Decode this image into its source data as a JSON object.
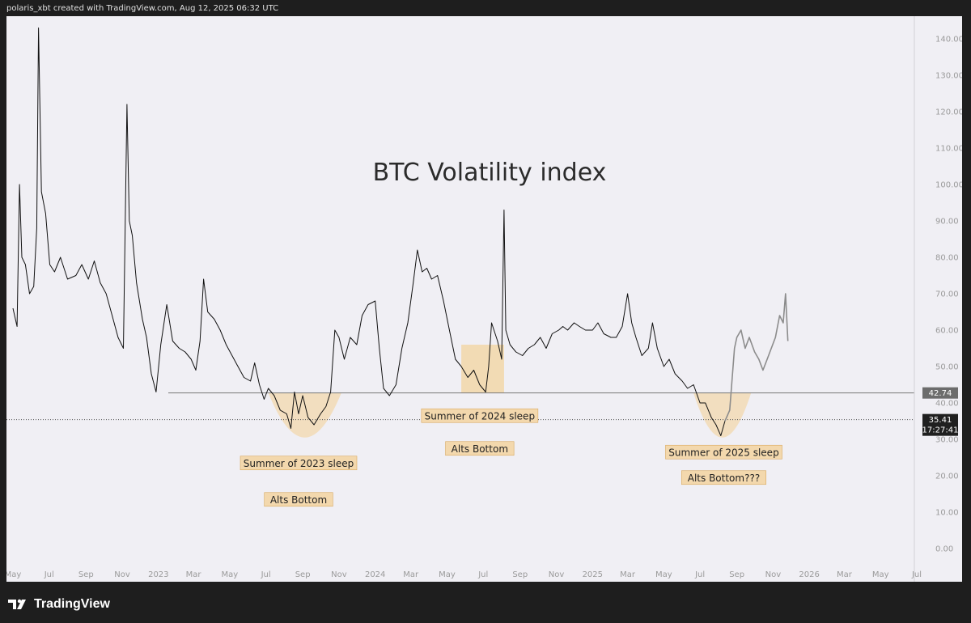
{
  "header": {
    "attribution": "polaris_xbt created with TradingView.com, Aug 12, 2025 06:32 UTC"
  },
  "footer": {
    "brand": "TradingView"
  },
  "colors": {
    "background": "#f0eff4",
    "series": "#111111",
    "projection": "#8c8c8c",
    "highlight": "#f2d7a8"
  },
  "chart_data": {
    "type": "line",
    "title": "BTC Volatility index",
    "ylim": [
      -1,
      145
    ],
    "yticks": [
      "140.00",
      "130.00",
      "120.00",
      "110.00",
      "100.00",
      "90.00",
      "80.00",
      "70.00",
      "60.00",
      "50.00",
      "40.00",
      "30.00",
      "20.00",
      "10.00",
      "0.00"
    ],
    "x_tick_labels": [
      "May",
      "Jul",
      "Sep",
      "Nov",
      "2023",
      "Mar",
      "May",
      "Jul",
      "Sep",
      "Nov",
      "2024",
      "Mar",
      "May",
      "Jul",
      "Sep",
      "Nov",
      "2025",
      "Mar",
      "May",
      "Jul",
      "Sep",
      "Nov",
      "2026",
      "Mar",
      "May",
      "Jul"
    ],
    "x_tick_dates": [
      "2022-05-01",
      "2022-07-01",
      "2022-09-01",
      "2022-11-01",
      "2023-01-01",
      "2023-03-01",
      "2023-05-01",
      "2023-07-01",
      "2023-09-01",
      "2023-11-01",
      "2024-01-01",
      "2024-03-01",
      "2024-05-01",
      "2024-07-01",
      "2024-09-01",
      "2024-11-01",
      "2025-01-01",
      "2025-03-01",
      "2025-05-01",
      "2025-07-01",
      "2025-09-01",
      "2025-11-01",
      "2026-01-01",
      "2026-03-01",
      "2026-05-01",
      "2026-07-01"
    ],
    "x_range": [
      "2022-05-01",
      "2026-07-01"
    ],
    "series": [
      {
        "points": [
          [
            "2022-05-01",
            66
          ],
          [
            "2022-05-08",
            61
          ],
          [
            "2022-05-12",
            100
          ],
          [
            "2022-05-16",
            80
          ],
          [
            "2022-05-22",
            78
          ],
          [
            "2022-05-29",
            70
          ],
          [
            "2022-06-05",
            72
          ],
          [
            "2022-06-10",
            88
          ],
          [
            "2022-06-13",
            143
          ],
          [
            "2022-06-18",
            98
          ],
          [
            "2022-06-25",
            92
          ],
          [
            "2022-07-02",
            78
          ],
          [
            "2022-07-10",
            76
          ],
          [
            "2022-07-20",
            80
          ],
          [
            "2022-08-01",
            74
          ],
          [
            "2022-08-15",
            75
          ],
          [
            "2022-08-25",
            78
          ],
          [
            "2022-09-05",
            74
          ],
          [
            "2022-09-15",
            79
          ],
          [
            "2022-09-25",
            73
          ],
          [
            "2022-10-05",
            70
          ],
          [
            "2022-10-15",
            64
          ],
          [
            "2022-10-25",
            58
          ],
          [
            "2022-11-03",
            55
          ],
          [
            "2022-11-09",
            122
          ],
          [
            "2022-11-13",
            90
          ],
          [
            "2022-11-18",
            86
          ],
          [
            "2022-11-25",
            73
          ],
          [
            "2022-12-05",
            63
          ],
          [
            "2022-12-12",
            58
          ],
          [
            "2022-12-20",
            48
          ],
          [
            "2022-12-28",
            43
          ],
          [
            "2023-01-05",
            56
          ],
          [
            "2023-01-15",
            67
          ],
          [
            "2023-01-25",
            57
          ],
          [
            "2023-02-05",
            55
          ],
          [
            "2023-02-15",
            54
          ],
          [
            "2023-02-25",
            52
          ],
          [
            "2023-03-05",
            49
          ],
          [
            "2023-03-12",
            57
          ],
          [
            "2023-03-18",
            74
          ],
          [
            "2023-03-25",
            65
          ],
          [
            "2023-04-05",
            63
          ],
          [
            "2023-04-15",
            60
          ],
          [
            "2023-04-25",
            56
          ],
          [
            "2023-05-05",
            53
          ],
          [
            "2023-05-15",
            50
          ],
          [
            "2023-05-25",
            47
          ],
          [
            "2023-06-05",
            46
          ],
          [
            "2023-06-12",
            51
          ],
          [
            "2023-06-20",
            45
          ],
          [
            "2023-06-28",
            41
          ],
          [
            "2023-07-05",
            44
          ],
          [
            "2023-07-15",
            42
          ],
          [
            "2023-07-25",
            38
          ],
          [
            "2023-08-05",
            37
          ],
          [
            "2023-08-12",
            33
          ],
          [
            "2023-08-18",
            43
          ],
          [
            "2023-08-25",
            37
          ],
          [
            "2023-09-01",
            42
          ],
          [
            "2023-09-10",
            36
          ],
          [
            "2023-09-20",
            34
          ],
          [
            "2023-10-01",
            37
          ],
          [
            "2023-10-10",
            39
          ],
          [
            "2023-10-18",
            43
          ],
          [
            "2023-10-25",
            60
          ],
          [
            "2023-11-01",
            58
          ],
          [
            "2023-11-10",
            52
          ],
          [
            "2023-11-20",
            58
          ],
          [
            "2023-12-01",
            56
          ],
          [
            "2023-12-10",
            64
          ],
          [
            "2023-12-20",
            67
          ],
          [
            "2024-01-01",
            68
          ],
          [
            "2024-01-08",
            55
          ],
          [
            "2024-01-15",
            44
          ],
          [
            "2024-01-25",
            42
          ],
          [
            "2024-02-05",
            45
          ],
          [
            "2024-02-15",
            55
          ],
          [
            "2024-02-25",
            62
          ],
          [
            "2024-03-05",
            73
          ],
          [
            "2024-03-12",
            82
          ],
          [
            "2024-03-20",
            76
          ],
          [
            "2024-03-28",
            77
          ],
          [
            "2024-04-05",
            74
          ],
          [
            "2024-04-15",
            75
          ],
          [
            "2024-04-25",
            68
          ],
          [
            "2024-05-05",
            60
          ],
          [
            "2024-05-15",
            52
          ],
          [
            "2024-05-25",
            50
          ],
          [
            "2024-06-05",
            47
          ],
          [
            "2024-06-15",
            49
          ],
          [
            "2024-06-25",
            45
          ],
          [
            "2024-07-05",
            43
          ],
          [
            "2024-07-10",
            50
          ],
          [
            "2024-07-15",
            62
          ],
          [
            "2024-07-25",
            57
          ],
          [
            "2024-08-01",
            52
          ],
          [
            "2024-08-05",
            93
          ],
          [
            "2024-08-08",
            60
          ],
          [
            "2024-08-15",
            56
          ],
          [
            "2024-08-25",
            54
          ],
          [
            "2024-09-05",
            53
          ],
          [
            "2024-09-15",
            55
          ],
          [
            "2024-09-25",
            56
          ],
          [
            "2024-10-05",
            58
          ],
          [
            "2024-10-15",
            55
          ],
          [
            "2024-10-25",
            59
          ],
          [
            "2024-11-05",
            60
          ],
          [
            "2024-11-12",
            61
          ],
          [
            "2024-11-20",
            60
          ],
          [
            "2024-12-01",
            62
          ],
          [
            "2024-12-10",
            61
          ],
          [
            "2024-12-20",
            60
          ],
          [
            "2025-01-01",
            60
          ],
          [
            "2025-01-10",
            62
          ],
          [
            "2025-01-20",
            59
          ],
          [
            "2025-02-01",
            58
          ],
          [
            "2025-02-10",
            58
          ],
          [
            "2025-02-20",
            61
          ],
          [
            "2025-03-01",
            70
          ],
          [
            "2025-03-08",
            62
          ],
          [
            "2025-03-15",
            58
          ],
          [
            "2025-03-25",
            53
          ],
          [
            "2025-04-05",
            55
          ],
          [
            "2025-04-12",
            62
          ],
          [
            "2025-04-20",
            55
          ],
          [
            "2025-05-01",
            50
          ],
          [
            "2025-05-10",
            52
          ],
          [
            "2025-05-20",
            48
          ],
          [
            "2025-06-01",
            46
          ],
          [
            "2025-06-10",
            44
          ],
          [
            "2025-06-20",
            45
          ],
          [
            "2025-07-01",
            40
          ],
          [
            "2025-07-10",
            40
          ],
          [
            "2025-07-20",
            36
          ],
          [
            "2025-07-28",
            34
          ],
          [
            "2025-08-05",
            31
          ],
          [
            "2025-08-12",
            35
          ]
        ]
      },
      {
        "points": [
          [
            "2025-08-12",
            35
          ],
          [
            "2025-08-20",
            38
          ],
          [
            "2025-08-28",
            55
          ],
          [
            "2025-09-01",
            58
          ],
          [
            "2025-09-08",
            60
          ],
          [
            "2025-09-15",
            55
          ],
          [
            "2025-09-22",
            58
          ],
          [
            "2025-10-01",
            54
          ],
          [
            "2025-10-08",
            52
          ],
          [
            "2025-10-15",
            49
          ],
          [
            "2025-10-22",
            52
          ],
          [
            "2025-10-29",
            55
          ],
          [
            "2025-11-05",
            58
          ],
          [
            "2025-11-12",
            64
          ],
          [
            "2025-11-18",
            62
          ],
          [
            "2025-11-22",
            70
          ],
          [
            "2025-11-26",
            57
          ]
        ]
      }
    ],
    "horizontal_line": {
      "value": 42.74,
      "label": "42.74"
    },
    "current_line": {
      "value": 35.41,
      "label": "35.41",
      "time": "17:27:41"
    },
    "zones": [
      {
        "shape": "bowl",
        "x0": "2023-07-05",
        "x1": "2023-11-05",
        "y_top": 42.74,
        "y_bottom": 30.5
      },
      {
        "shape": "rect",
        "x0": "2024-05-25",
        "x1": "2024-08-05",
        "y_top": 56,
        "y_bottom": 42.74
      },
      {
        "shape": "bowl",
        "x0": "2025-06-20",
        "x1": "2025-09-25",
        "y_top": 42.74,
        "y_bottom": 30.5
      }
    ],
    "annotations": [
      {
        "text": "Summer of 2023 sleep",
        "x": "2023-08-25",
        "y": 23.5
      },
      {
        "text": "Alts Bottom",
        "x": "2023-08-25",
        "y": 13.5
      },
      {
        "text": "Summer of 2024 sleep",
        "x": "2024-06-25",
        "y": 36.5
      },
      {
        "text": "Alts Bottom",
        "x": "2024-06-25",
        "y": 27.5
      },
      {
        "text": "Summer of 2025 sleep",
        "x": "2025-08-10",
        "y": 26.5
      },
      {
        "text": "Alts Bottom???",
        "x": "2025-08-10",
        "y": 19.5
      }
    ]
  }
}
